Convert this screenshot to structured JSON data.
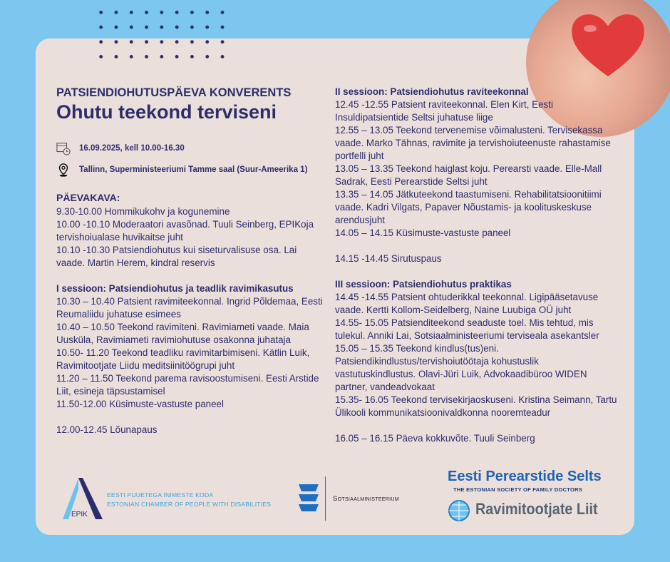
{
  "header": {
    "supertitle": "PATSIENDIOHUTUSPÄEVA KONVERENTS",
    "title": "Ohutu teekond terviseni",
    "date": "16.09.2025, kell 10.00-16.30",
    "location": "Tallinn, Superministeeriumi Tamme saal (Suur-Ameerika 1)"
  },
  "agenda": {
    "heading": "PÄEVAKAVA:",
    "opening": [
      "9.30-10.00 Hommikukohv ja kogunemine",
      "10.00 -10.10 Moderaatori avasõnad. Tuuli Seinberg, EPIKoja tervishoiualase huvikaitse juht",
      "10.10 -10.30 Patsiendiohutus kui siseturvalisuse osa. Lai vaade. Martin Herem, kindral reservis"
    ],
    "session1": {
      "title": "I sessioon: Patsiendiohutus ja teadlik ravimikasutus",
      "items": [
        "10.30 – 10.40 Patsient ravimiteekonnal. Ingrid Põldemaa, Eesti Reumaliidu juhatuse esimees",
        "10.40 – 10.50 Teekond ravimiteni. Ravimiameti vaade. Maia Uusküla, Ravimiameti ravimiohutuse osakonna juhataja",
        "10.50- 11.20 Teekond teadliku ravimitarbimiseni. Kätlin Luik, Ravimitootjate Liidu meditsiinitöögrupi juht",
        "11.20 – 11.50 Teekond parema ravisoostumiseni. Eesti Arstide Liit, esineja täpsustamisel",
        "11.50-12.00 Küsimuste-vastuste paneel"
      ]
    },
    "lunch": "12.00-12.45 Lõunapaus",
    "session2": {
      "title": "II sessioon: Patsiendiohutus raviteekonnal",
      "items": [
        "12.45 -12.55 Patsient raviteekonnal. Elen Kirt, Eesti Insuldipatsientide Seltsi juhatuse liige",
        "12.55 – 13.05 Teekond tervenemise võimalusteni. Tervisekassa vaade. Marko Tähnas, ravimite ja tervishoiuteenuste rahastamise portfelli juht",
        "13.05 – 13.35 Teekond haiglast koju. Perearsti vaade. Elle-Mall Sadrak, Eesti Perearstide Seltsi juht",
        "13.35 – 14.05 Jätkuteekond taastumiseni. Rehabilitatsioonitiimi vaade. Kadri Vilgats, Papaver Nõustamis- ja koolituskeskuse arendusjuht",
        "14.05 – 14.15 Küsimuste-vastuste paneel"
      ]
    },
    "break": "14.15 -14.45 Sirutuspaus",
    "session3": {
      "title": "III sessioon: Patsiendiohutus praktikas",
      "items": [
        "14.45 -14.55 Patsient ohtuderikkal teekonnal. Ligipääsetavuse vaade. Kertti Kollom-Seidelberg, Naine Luubiga OÜ juht",
        "14.55- 15.05 Patsienditeekond seaduste toel. Mis tehtud, mis tulekul. Anniki Lai, Sotsiaalministeeriumi terviseala asekantsler",
        "15.05 – 15.35 Teekond kindlus(tus)eni. Patsiendikindlustus/tervishoiutöötaja kohustuslik vastutuskindlustus. Olavi-Jüri Luik, Advokaadibüroo WIDEN partner, vandeadvokaat",
        "15.35- 16.05 Teekond tervisekirjaoskuseni. Kristina Seimann, Tartu Ülikooli kommunikatsioonivaldkonna nooremteadur"
      ]
    },
    "closing": "16.05 – 16.15 Päeva kokkuvõte. Tuuli Seinberg"
  },
  "logos": {
    "epik_mark": "EPIK",
    "epik_line1": "EESTI PUUETEGA INIMESTE KODA",
    "epik_line2": "ESTONIAN CHAMBER OF PEOPLE WITH DISABILITIES",
    "ministry": "Sotsiaalministeerium",
    "eps_title": "Eesti Perearstide Selts",
    "eps_subtitle": "THE ESTONIAN SOCIETY OF FAMILY DOCTORS",
    "rl_title": "Ravimitootjate Liit"
  },
  "colors": {
    "background": "#7cc7ef",
    "card": "#ebdfdc",
    "text": "#2e2d6b",
    "heart": "#e23b3b"
  }
}
